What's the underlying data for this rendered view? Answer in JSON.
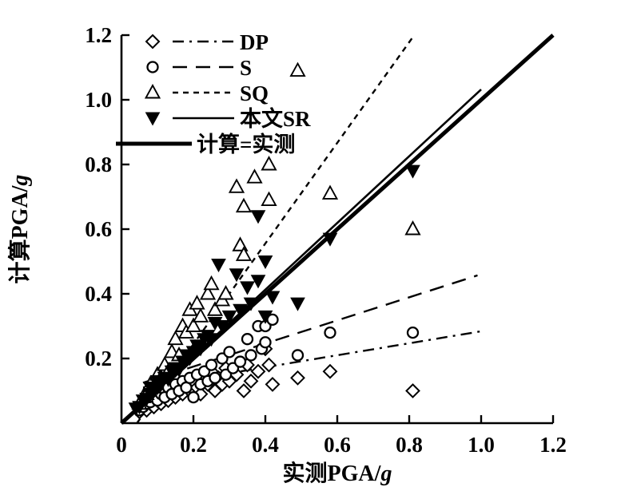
{
  "page": {
    "background": "#ffffff",
    "ink_color": "#000000"
  },
  "chart_data": {
    "type": "scatter",
    "title": "",
    "xlabel": {
      "main": "实测PGA/",
      "italic_suffix": "g"
    },
    "ylabel": {
      "main": "计算PGA/",
      "italic_suffix": "g"
    },
    "xlim": [
      0,
      1.2
    ],
    "ylim": [
      0,
      1.2
    ],
    "xticks": {
      "values": [
        0,
        0.2,
        0.4,
        0.6,
        0.8,
        1.0,
        1.2
      ],
      "labels": [
        "0",
        "0.2",
        "0.4",
        "0.6",
        "0.8",
        "1.0",
        "1.2"
      ]
    },
    "yticks": {
      "values": [
        0.2,
        0.4,
        0.6,
        0.8,
        1.0,
        1.2
      ],
      "labels": [
        "0.2",
        "0.4",
        "0.6",
        "0.8",
        "1.0",
        "1.2"
      ]
    },
    "grid": false,
    "legend": {
      "position": "top-left-inside"
    },
    "series": [
      {
        "name": "DP",
        "legend_label": "DP",
        "marker": "open-diamond",
        "line_style": "dash-dot",
        "fit_line": {
          "x": [
            0.06,
            1.005
          ],
          "y": [
            0.11,
            0.285
          ]
        },
        "points": [
          [
            0.05,
            0.035
          ],
          [
            0.06,
            0.05
          ],
          [
            0.07,
            0.04
          ],
          [
            0.08,
            0.06
          ],
          [
            0.09,
            0.05
          ],
          [
            0.1,
            0.07
          ],
          [
            0.11,
            0.06
          ],
          [
            0.12,
            0.08
          ],
          [
            0.13,
            0.07
          ],
          [
            0.14,
            0.1
          ],
          [
            0.15,
            0.08
          ],
          [
            0.16,
            0.11
          ],
          [
            0.17,
            0.09
          ],
          [
            0.18,
            0.12
          ],
          [
            0.19,
            0.1
          ],
          [
            0.2,
            0.13
          ],
          [
            0.21,
            0.11
          ],
          [
            0.22,
            0.09
          ],
          [
            0.23,
            0.14
          ],
          [
            0.24,
            0.12
          ],
          [
            0.25,
            0.16
          ],
          [
            0.26,
            0.1
          ],
          [
            0.27,
            0.14
          ],
          [
            0.28,
            0.12
          ],
          [
            0.29,
            0.17
          ],
          [
            0.3,
            0.13
          ],
          [
            0.32,
            0.15
          ],
          [
            0.34,
            0.1
          ],
          [
            0.35,
            0.18
          ],
          [
            0.36,
            0.13
          ],
          [
            0.38,
            0.16
          ],
          [
            0.4,
            0.23
          ],
          [
            0.41,
            0.18
          ],
          [
            0.42,
            0.12
          ],
          [
            0.49,
            0.14
          ],
          [
            0.58,
            0.16
          ],
          [
            0.81,
            0.1
          ]
        ]
      },
      {
        "name": "S",
        "legend_label": "S",
        "marker": "open-circle",
        "line_style": "long-dash",
        "fit_line": {
          "x": [
            0.06,
            0.99
          ],
          "y": [
            0.125,
            0.457
          ]
        },
        "points": [
          [
            0.05,
            0.04
          ],
          [
            0.06,
            0.05
          ],
          [
            0.07,
            0.06
          ],
          [
            0.08,
            0.065
          ],
          [
            0.09,
            0.08
          ],
          [
            0.1,
            0.07
          ],
          [
            0.11,
            0.09
          ],
          [
            0.12,
            0.08
          ],
          [
            0.13,
            0.11
          ],
          [
            0.14,
            0.09
          ],
          [
            0.15,
            0.12
          ],
          [
            0.16,
            0.1
          ],
          [
            0.17,
            0.13
          ],
          [
            0.18,
            0.11
          ],
          [
            0.19,
            0.14
          ],
          [
            0.2,
            0.08
          ],
          [
            0.21,
            0.15
          ],
          [
            0.22,
            0.12
          ],
          [
            0.23,
            0.16
          ],
          [
            0.24,
            0.13
          ],
          [
            0.25,
            0.18
          ],
          [
            0.26,
            0.14
          ],
          [
            0.28,
            0.2
          ],
          [
            0.29,
            0.15
          ],
          [
            0.3,
            0.22
          ],
          [
            0.31,
            0.17
          ],
          [
            0.33,
            0.19
          ],
          [
            0.35,
            0.26
          ],
          [
            0.36,
            0.21
          ],
          [
            0.38,
            0.3
          ],
          [
            0.39,
            0.23
          ],
          [
            0.4,
            0.3
          ],
          [
            0.4,
            0.25
          ],
          [
            0.42,
            0.32
          ],
          [
            0.49,
            0.21
          ],
          [
            0.58,
            0.28
          ],
          [
            0.81,
            0.28
          ]
        ]
      },
      {
        "name": "SQ",
        "legend_label": "SQ",
        "marker": "open-triangle-up",
        "line_style": "short-dash",
        "fit_line": {
          "x": [
            0.043,
            0.814
          ],
          "y": [
            0.0,
            1.2
          ]
        },
        "points": [
          [
            0.05,
            0.06
          ],
          [
            0.06,
            0.08
          ],
          [
            0.07,
            0.09
          ],
          [
            0.08,
            0.12
          ],
          [
            0.09,
            0.11
          ],
          [
            0.1,
            0.15
          ],
          [
            0.11,
            0.14
          ],
          [
            0.12,
            0.18
          ],
          [
            0.13,
            0.16
          ],
          [
            0.14,
            0.22
          ],
          [
            0.15,
            0.26
          ],
          [
            0.16,
            0.21
          ],
          [
            0.17,
            0.3
          ],
          [
            0.18,
            0.28
          ],
          [
            0.19,
            0.35
          ],
          [
            0.2,
            0.3
          ],
          [
            0.21,
            0.37
          ],
          [
            0.22,
            0.33
          ],
          [
            0.24,
            0.4
          ],
          [
            0.25,
            0.43
          ],
          [
            0.26,
            0.35
          ],
          [
            0.28,
            0.38
          ],
          [
            0.29,
            0.4
          ],
          [
            0.32,
            0.73
          ],
          [
            0.33,
            0.55
          ],
          [
            0.34,
            0.52
          ],
          [
            0.34,
            0.67
          ],
          [
            0.37,
            0.76
          ],
          [
            0.41,
            0.8
          ],
          [
            0.41,
            0.69
          ],
          [
            0.49,
            1.09
          ],
          [
            0.58,
            0.71
          ],
          [
            0.81,
            0.6
          ]
        ]
      },
      {
        "name": "SR",
        "legend_label": "本文SR",
        "marker": "filled-triangle-down",
        "line_style": "solid",
        "fit_line": {
          "x": [
            0.0,
            1.0
          ],
          "y": [
            0.0,
            1.032
          ]
        },
        "points": [
          [
            0.04,
            0.045
          ],
          [
            0.05,
            0.05
          ],
          [
            0.06,
            0.07
          ],
          [
            0.07,
            0.075
          ],
          [
            0.08,
            0.09
          ],
          [
            0.08,
            0.11
          ],
          [
            0.09,
            0.1
          ],
          [
            0.1,
            0.11
          ],
          [
            0.1,
            0.13
          ],
          [
            0.11,
            0.12
          ],
          [
            0.12,
            0.14
          ],
          [
            0.13,
            0.135
          ],
          [
            0.14,
            0.16
          ],
          [
            0.15,
            0.17
          ],
          [
            0.16,
            0.165
          ],
          [
            0.17,
            0.19
          ],
          [
            0.18,
            0.21
          ],
          [
            0.19,
            0.2
          ],
          [
            0.2,
            0.22
          ],
          [
            0.21,
            0.24
          ],
          [
            0.22,
            0.23
          ],
          [
            0.23,
            0.26
          ],
          [
            0.24,
            0.27
          ],
          [
            0.25,
            0.26
          ],
          [
            0.26,
            0.31
          ],
          [
            0.27,
            0.49
          ],
          [
            0.28,
            0.3
          ],
          [
            0.3,
            0.33
          ],
          [
            0.32,
            0.46
          ],
          [
            0.33,
            0.35
          ],
          [
            0.35,
            0.42
          ],
          [
            0.36,
            0.37
          ],
          [
            0.38,
            0.64
          ],
          [
            0.38,
            0.44
          ],
          [
            0.4,
            0.5
          ],
          [
            0.4,
            0.33
          ],
          [
            0.42,
            0.39
          ],
          [
            0.49,
            0.37
          ],
          [
            0.58,
            0.57
          ],
          [
            0.81,
            0.78
          ]
        ]
      },
      {
        "name": "equality",
        "legend_label": "计算=实测",
        "marker": "none",
        "line_style": "solid-thick",
        "fit_line": {
          "x": [
            0.0,
            1.2
          ],
          "y": [
            0.0,
            1.2
          ]
        },
        "points": []
      }
    ]
  }
}
